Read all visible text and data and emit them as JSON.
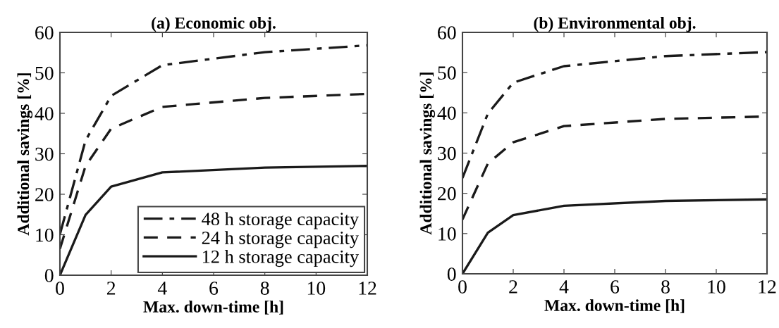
{
  "chart_data": [
    {
      "type": "line",
      "title": "(a) Economic obj.",
      "xlabel": "Max. down-time [h]",
      "ylabel": "Additional savings [%]",
      "x": [
        0,
        1,
        2,
        4,
        8,
        12
      ],
      "xlim": [
        0,
        12
      ],
      "xticks": [
        0,
        2,
        4,
        6,
        8,
        10,
        12
      ],
      "ylim": [
        0,
        60
      ],
      "yticks": [
        0,
        10,
        20,
        30,
        40,
        50,
        60
      ],
      "grid": false,
      "legend": "bottom right",
      "marker": "none",
      "series": [
        {
          "name": "48 h storage capacity",
          "color": "#1a1a1a",
          "line_style": "dashdot",
          "values": [
            10.1,
            33.3,
            44.3,
            51.9,
            55.1,
            56.8
          ]
        },
        {
          "name": "24 h storage capacity",
          "color": "#1a1a1a",
          "line_style": "dashed",
          "values": [
            6.5,
            27,
            36.2,
            41.6,
            43.8,
            44.8
          ]
        },
        {
          "name": "12 h storage capacity",
          "color": "#1a1a1a",
          "line_style": "solid",
          "values": [
            0,
            14.9,
            21.9,
            25.4,
            26.6,
            27
          ]
        }
      ]
    },
    {
      "type": "line",
      "title": "(b) Environmental obj.",
      "xlabel": "Max. down-time [h]",
      "ylabel": "Additional savings [%]",
      "x": [
        0,
        1,
        2,
        4,
        8,
        12
      ],
      "xlim": [
        0,
        12
      ],
      "xticks": [
        0,
        2,
        4,
        6,
        8,
        10,
        12
      ],
      "ylim": [
        0,
        60
      ],
      "yticks": [
        0,
        10,
        20,
        30,
        40,
        50,
        60
      ],
      "grid": false,
      "marker": "none",
      "series": [
        {
          "color": "#1a1a1a",
          "line_style": "dashdot",
          "values": [
            23.8,
            39.8,
            47.5,
            51.6,
            54.1,
            55.1
          ]
        },
        {
          "color": "#1a1a1a",
          "line_style": "dashed",
          "values": [
            13.5,
            27.4,
            32.7,
            36.7,
            38.5,
            39.1
          ]
        },
        {
          "color": "#1a1a1a",
          "line_style": "solid",
          "values": [
            0,
            10.2,
            14.6,
            16.9,
            18.1,
            18.5
          ]
        }
      ]
    }
  ]
}
